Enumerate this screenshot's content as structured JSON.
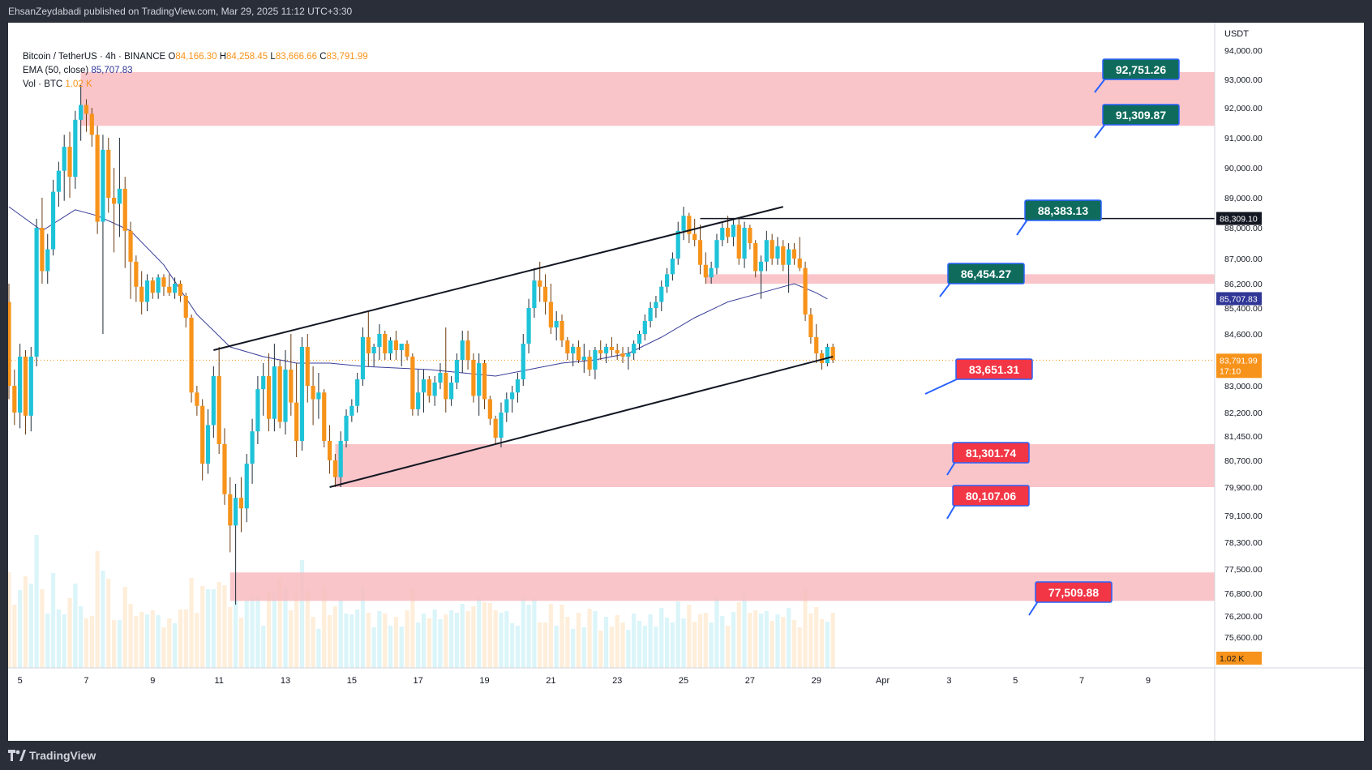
{
  "header": {
    "published": "EhsanZeydabadi published on TradingView.com, Mar 29, 2025 11:12 UTC+3:30"
  },
  "legend": {
    "symbol": "Bitcoin / TetherUS · 4h · BINANCE",
    "open_label": "O",
    "open": "84,166.30",
    "high_label": "H",
    "high": "84,258.45",
    "low_label": "L",
    "low": "83,666.66",
    "close_label": "C",
    "close": "83,791.99",
    "ema_label": "EMA (50, close)",
    "ema_value": "85,707.83",
    "vol_label": "Vol · BTC",
    "vol_value": "1.02 K"
  },
  "footer": {
    "brand": "TradingView"
  },
  "chart_data": {
    "type": "candlestick",
    "currency": "USDT",
    "y_ticks": [
      "94,000.00",
      "93,000.00",
      "92,000.00",
      "91,000.00",
      "90,000.00",
      "89,000.00",
      "88,000.00",
      "87,000.00",
      "86,200.00",
      "85,400.00",
      "84,600.00",
      "83,000.00",
      "82,200.00",
      "81,450.00",
      "80,700.00",
      "79,900.00",
      "79,100.00",
      "78,300.00",
      "77,500.00",
      "76,800.00",
      "76,200.00",
      "75,600.00"
    ],
    "y_tick_values": [
      94000,
      93000,
      92000,
      91000,
      90000,
      89000,
      88000,
      87000,
      86200,
      85400,
      84600,
      83000,
      82200,
      81450,
      80700,
      79900,
      79100,
      78300,
      77500,
      76800,
      76200,
      75600
    ],
    "x_ticks": [
      "5",
      "7",
      "9",
      "11",
      "13",
      "15",
      "17",
      "19",
      "21",
      "23",
      "25",
      "27",
      "29",
      "Apr",
      "3",
      "5",
      "7",
      "9"
    ],
    "x_tick_index": [
      2,
      14,
      26,
      38,
      50,
      62,
      74,
      86,
      98,
      110,
      122,
      134,
      146,
      158,
      170,
      182,
      194,
      206
    ],
    "candle_count": 150,
    "ema_label": "85,707.83",
    "last_price": "83,791.99",
    "countdown": "17:10",
    "volume_label": "1.02 K",
    "hline": {
      "price": 88309.1,
      "label": "88,309.10"
    },
    "resistance_labels": [
      "92,751.26",
      "91,309.87",
      "88,383.13",
      "86,454.27"
    ],
    "support_labels": [
      "83,651.31",
      "81,301.74",
      "80,107.06",
      "77,509.88"
    ],
    "zones": [
      {
        "from_index": 13,
        "top": 93250,
        "bottom": 91400
      },
      {
        "from_index": 126,
        "top": 86500,
        "bottom": 86200
      },
      {
        "from_index": 59,
        "top": 81200,
        "bottom": 79900
      },
      {
        "from_index": 40,
        "top": 77400,
        "bottom": 76600
      }
    ],
    "trendlines": [
      {
        "x1": 37,
        "y1": 84100,
        "x2": 140,
        "y2": 88700
      },
      {
        "x1": 58,
        "y1": 79900,
        "x2": 149,
        "y2": 83900
      }
    ],
    "colors": {
      "up": "#26a69a",
      "up_fill": "#1ec3d8",
      "down": "#f7931a",
      "zone": "#f8bbc0",
      "ema": "#3a3f9a",
      "pos_label": "#0f6b5c",
      "neg_label": "#f23645",
      "label_border": "#2962ff"
    },
    "candles": [
      [
        85600,
        86200,
        82600,
        83000
      ],
      [
        83000,
        83500,
        81800,
        82200
      ],
      [
        82200,
        84300,
        81700,
        83900
      ],
      [
        83900,
        84100,
        81500,
        82100
      ],
      [
        82100,
        84200,
        81600,
        83900
      ],
      [
        83900,
        88300,
        83600,
        88000
      ],
      [
        88000,
        89000,
        86200,
        86600
      ],
      [
        86600,
        87800,
        86200,
        87300
      ],
      [
        87300,
        89600,
        87100,
        89200
      ],
      [
        89200,
        90200,
        88700,
        89900
      ],
      [
        89900,
        91100,
        88900,
        90700
      ],
      [
        90700,
        91200,
        89000,
        89700
      ],
      [
        89700,
        91900,
        89300,
        91600
      ],
      [
        91600,
        92800,
        90900,
        92100
      ],
      [
        92100,
        92300,
        91200,
        91800
      ],
      [
        91800,
        92000,
        90700,
        91100
      ],
      [
        91100,
        91400,
        87800,
        88200
      ],
      [
        88200,
        91100,
        84600,
        90600
      ],
      [
        90600,
        91000,
        88500,
        89000
      ],
      [
        89000,
        90000,
        87200,
        88800
      ],
      [
        88800,
        91000,
        87700,
        89300
      ],
      [
        89300,
        89700,
        86700,
        87900
      ],
      [
        87900,
        88200,
        85700,
        86900
      ],
      [
        86900,
        87100,
        85600,
        86100
      ],
      [
        86100,
        86600,
        85200,
        85600
      ],
      [
        85600,
        86500,
        85300,
        86300
      ],
      [
        86300,
        86400,
        85700,
        85900
      ],
      [
        85900,
        86500,
        85700,
        86400
      ],
      [
        86400,
        86500,
        85800,
        86100
      ],
      [
        86100,
        86500,
        85800,
        85900
      ],
      [
        85900,
        86400,
        85700,
        86200
      ],
      [
        86200,
        86300,
        85600,
        85800
      ],
      [
        85800,
        85900,
        84800,
        85100
      ],
      [
        85100,
        85200,
        82500,
        82800
      ],
      [
        82800,
        83000,
        82100,
        82400
      ],
      [
        82400,
        82600,
        80100,
        80600
      ],
      [
        80600,
        82300,
        80300,
        81800
      ],
      [
        81800,
        83600,
        81400,
        83300
      ],
      [
        83300,
        84200,
        80900,
        81200
      ],
      [
        81200,
        81700,
        79400,
        79700
      ],
      [
        79700,
        80200,
        78000,
        78800
      ],
      [
        78800,
        80000,
        76500,
        79600
      ],
      [
        79600,
        80200,
        78600,
        79300
      ],
      [
        79300,
        80900,
        78900,
        80600
      ],
      [
        80600,
        82000,
        80000,
        81600
      ],
      [
        81600,
        83300,
        81200,
        82900
      ],
      [
        82900,
        83700,
        82100,
        83300
      ],
      [
        83300,
        84000,
        81600,
        82000
      ],
      [
        82000,
        84300,
        81600,
        83600
      ],
      [
        83600,
        83800,
        81700,
        81900
      ],
      [
        81900,
        84100,
        81500,
        83500
      ],
      [
        83500,
        84600,
        82100,
        82500
      ],
      [
        82500,
        83700,
        80800,
        81300
      ],
      [
        81300,
        84500,
        81000,
        84200
      ],
      [
        84200,
        84600,
        82500,
        83000
      ],
      [
        83000,
        83600,
        81800,
        82600
      ],
      [
        82600,
        83400,
        82000,
        82800
      ],
      [
        82800,
        82900,
        81100,
        81300
      ],
      [
        81300,
        81800,
        80300,
        80700
      ],
      [
        80700,
        80900,
        79900,
        80200
      ],
      [
        80200,
        81600,
        79900,
        81300
      ],
      [
        81300,
        82300,
        81100,
        82100
      ],
      [
        82100,
        82600,
        81900,
        82400
      ],
      [
        82400,
        83400,
        82200,
        83200
      ],
      [
        83200,
        84800,
        83000,
        84500
      ],
      [
        84500,
        85300,
        83600,
        84000
      ],
      [
        84000,
        84300,
        83600,
        84200
      ],
      [
        84200,
        84900,
        83800,
        84600
      ],
      [
        84600,
        84700,
        83800,
        84000
      ],
      [
        84000,
        84500,
        83800,
        84400
      ],
      [
        84400,
        84700,
        83800,
        84100
      ],
      [
        84100,
        84300,
        83600,
        84300
      ],
      [
        84300,
        84400,
        83800,
        83900
      ],
      [
        83900,
        84000,
        82100,
        82300
      ],
      [
        82300,
        83500,
        82100,
        82800
      ],
      [
        82800,
        83500,
        82200,
        83200
      ],
      [
        83200,
        83300,
        82500,
        82700
      ],
      [
        82700,
        83300,
        82400,
        83100
      ],
      [
        83100,
        83700,
        82900,
        83400
      ],
      [
        83400,
        84800,
        82200,
        82600
      ],
      [
        82600,
        83300,
        82400,
        83100
      ],
      [
        83100,
        84000,
        82900,
        83800
      ],
      [
        83800,
        84700,
        83400,
        84400
      ],
      [
        84400,
        84700,
        83500,
        83800
      ],
      [
        83800,
        84000,
        82500,
        82700
      ],
      [
        82700,
        84000,
        82100,
        83700
      ],
      [
        83700,
        83800,
        82300,
        82600
      ],
      [
        82600,
        82700,
        81800,
        82000
      ],
      [
        82000,
        82100,
        81200,
        81400
      ],
      [
        81400,
        82500,
        81100,
        82200
      ],
      [
        82200,
        82800,
        81900,
        82600
      ],
      [
        82600,
        83000,
        82200,
        82800
      ],
      [
        82800,
        83400,
        82500,
        83200
      ],
      [
        83200,
        84600,
        83000,
        84300
      ],
      [
        84300,
        85700,
        84000,
        85400
      ],
      [
        85400,
        86700,
        85100,
        86300
      ],
      [
        86300,
        86900,
        85600,
        86100
      ],
      [
        86100,
        86500,
        85200,
        85600
      ],
      [
        85600,
        86200,
        84600,
        84800
      ],
      [
        84800,
        85300,
        84400,
        85000
      ],
      [
        85000,
        85200,
        84200,
        84400
      ],
      [
        84400,
        84500,
        83800,
        84000
      ],
      [
        84000,
        84300,
        83600,
        84200
      ],
      [
        84200,
        84400,
        83700,
        83800
      ],
      [
        83800,
        84300,
        83400,
        83900
      ],
      [
        83900,
        84100,
        83300,
        83500
      ],
      [
        83500,
        84200,
        83200,
        84100
      ],
      [
        84100,
        84400,
        83800,
        84000
      ],
      [
        84000,
        84300,
        83700,
        84200
      ],
      [
        84200,
        84500,
        83900,
        84100
      ],
      [
        84100,
        84300,
        83800,
        84000
      ],
      [
        84000,
        84200,
        83700,
        83900
      ],
      [
        83900,
        84200,
        83500,
        84000
      ],
      [
        84000,
        84400,
        83800,
        84300
      ],
      [
        84300,
        84700,
        84100,
        84600
      ],
      [
        84600,
        85200,
        84400,
        85000
      ],
      [
        85000,
        85600,
        84800,
        85400
      ],
      [
        85400,
        85800,
        85100,
        85600
      ],
      [
        85600,
        86300,
        85300,
        86100
      ],
      [
        86100,
        86700,
        85900,
        86500
      ],
      [
        86500,
        87200,
        86300,
        87000
      ],
      [
        87000,
        88200,
        86800,
        87900
      ],
      [
        87900,
        88700,
        87600,
        88400
      ],
      [
        88400,
        88500,
        87500,
        87800
      ],
      [
        87800,
        88300,
        87400,
        87600
      ],
      [
        87600,
        88100,
        86500,
        86800
      ],
      [
        86800,
        87200,
        86200,
        86400
      ],
      [
        86400,
        86900,
        86200,
        86700
      ],
      [
        86700,
        87800,
        86500,
        87600
      ],
      [
        87600,
        88200,
        87400,
        88000
      ],
      [
        88000,
        88400,
        87500,
        87700
      ],
      [
        87700,
        88300,
        87400,
        88100
      ],
      [
        88100,
        88300,
        86800,
        87000
      ],
      [
        87000,
        88200,
        86700,
        88000
      ],
      [
        88000,
        88100,
        87300,
        87500
      ],
      [
        87500,
        87600,
        86400,
        86600
      ],
      [
        86600,
        87100,
        85700,
        86900
      ],
      [
        86900,
        87900,
        86600,
        87600
      ],
      [
        87600,
        87800,
        86800,
        87000
      ],
      [
        87000,
        87700,
        86800,
        87400
      ],
      [
        87400,
        87600,
        86600,
        86800
      ],
      [
        86800,
        87500,
        85900,
        87300
      ],
      [
        87300,
        87500,
        86800,
        87000
      ],
      [
        87000,
        87700,
        86600,
        86700
      ],
      [
        86700,
        86900,
        85000,
        85200
      ],
      [
        85200,
        85400,
        84300,
        84500
      ],
      [
        84500,
        84900,
        83700,
        84000
      ],
      [
        84000,
        84100,
        83500,
        83700
      ],
      [
        83700,
        84300,
        83600,
        84200
      ],
      [
        84200,
        84300,
        83700,
        83800
      ]
    ],
    "ema": [
      [
        0,
        88700
      ],
      [
        6,
        87900
      ],
      [
        12,
        88600
      ],
      [
        16,
        88400
      ],
      [
        22,
        87900
      ],
      [
        28,
        86800
      ],
      [
        34,
        85200
      ],
      [
        40,
        84200
      ],
      [
        46,
        83900
      ],
      [
        52,
        83700
      ],
      [
        58,
        83700
      ],
      [
        64,
        83600
      ],
      [
        70,
        83550
      ],
      [
        76,
        83500
      ],
      [
        82,
        83400
      ],
      [
        88,
        83300
      ],
      [
        94,
        83500
      ],
      [
        100,
        83700
      ],
      [
        106,
        83800
      ],
      [
        112,
        84000
      ],
      [
        118,
        84500
      ],
      [
        124,
        85100
      ],
      [
        130,
        85600
      ],
      [
        136,
        85900
      ],
      [
        142,
        86200
      ],
      [
        146,
        85900
      ],
      [
        148,
        85700
      ]
    ]
  }
}
